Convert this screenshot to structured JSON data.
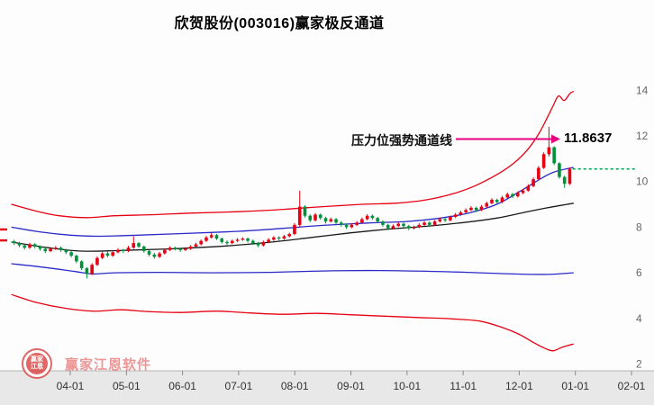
{
  "watermark": {
    "text": "赢家江恩软件",
    "logo_top": "赢家",
    "logo_bottom": "江恩"
  },
  "chart_data": {
    "type": "candlestick",
    "title": "欣贺股份(003016)赢家极反通道",
    "x_ticks": [
      "04-01",
      "05-01",
      "06-01",
      "07-01",
      "08-01",
      "09-01",
      "10-01",
      "11-01",
      "12-01",
      "01-01",
      "02-01"
    ],
    "y_ticks": [
      2,
      4,
      6,
      8,
      10,
      12,
      14
    ],
    "ylim": [
      2,
      14
    ],
    "grid": false,
    "legend": "none",
    "annotation": {
      "label": "压力位强势通道线",
      "value": "11.8637",
      "arrow_color": "#e6007e"
    },
    "price_extension_line": {
      "value": 10.55,
      "color": "#00a650",
      "style": "dotted"
    },
    "left_edge_markers": {
      "color": "#e60012",
      "values": [
        7.9,
        7.42
      ]
    },
    "channel_lines": [
      {
        "name": "upper-rail-red",
        "color": "#e60012",
        "points": [
          [
            -1.05,
            9.0
          ],
          [
            -0.6,
            8.7
          ],
          [
            -0.2,
            8.5
          ],
          [
            0.3,
            8.42
          ],
          [
            0.8,
            8.5
          ],
          [
            1.5,
            8.55
          ],
          [
            2.2,
            8.62
          ],
          [
            3.0,
            8.68
          ],
          [
            3.8,
            8.78
          ],
          [
            4.5,
            8.9
          ],
          [
            5.2,
            9.0
          ],
          [
            5.8,
            9.05
          ],
          [
            6.3,
            9.18
          ],
          [
            6.8,
            9.45
          ],
          [
            7.2,
            9.8
          ],
          [
            7.6,
            10.3
          ],
          [
            7.9,
            10.8
          ],
          [
            8.15,
            11.4
          ],
          [
            8.35,
            12.1
          ],
          [
            8.5,
            12.8
          ],
          [
            8.6,
            13.3
          ],
          [
            8.7,
            13.75
          ],
          [
            8.8,
            13.55
          ],
          [
            8.9,
            13.85
          ],
          [
            8.97,
            13.95
          ]
        ]
      },
      {
        "name": "upper-inner-blue",
        "color": "#2a2ac8",
        "points": [
          [
            -1.05,
            8.0
          ],
          [
            -0.5,
            7.78
          ],
          [
            0,
            7.65
          ],
          [
            0.5,
            7.6
          ],
          [
            1.2,
            7.65
          ],
          [
            2.0,
            7.72
          ],
          [
            3.0,
            7.82
          ],
          [
            3.8,
            7.95
          ],
          [
            4.5,
            8.08
          ],
          [
            5.3,
            8.18
          ],
          [
            6.0,
            8.25
          ],
          [
            6.6,
            8.4
          ],
          [
            7.1,
            8.62
          ],
          [
            7.6,
            9.0
          ],
          [
            8.0,
            9.55
          ],
          [
            8.3,
            10.0
          ],
          [
            8.6,
            10.4
          ],
          [
            8.97,
            10.62
          ]
        ]
      },
      {
        "name": "life-line-black",
        "color": "#1a1a1a",
        "points": [
          [
            -1.05,
            7.35
          ],
          [
            -0.4,
            7.1
          ],
          [
            0.2,
            6.95
          ],
          [
            0.9,
            6.98
          ],
          [
            1.8,
            7.05
          ],
          [
            2.8,
            7.18
          ],
          [
            3.6,
            7.35
          ],
          [
            4.3,
            7.55
          ],
          [
            5.0,
            7.75
          ],
          [
            5.7,
            7.92
          ],
          [
            6.4,
            8.05
          ],
          [
            7.0,
            8.2
          ],
          [
            7.6,
            8.4
          ],
          [
            8.1,
            8.65
          ],
          [
            8.5,
            8.85
          ],
          [
            8.97,
            9.05
          ]
        ]
      },
      {
        "name": "lower-inner-blue",
        "color": "#2a2ac8",
        "points": [
          [
            -1.05,
            6.4
          ],
          [
            -0.5,
            6.25
          ],
          [
            0.1,
            6.05
          ],
          [
            0.4,
            5.95
          ],
          [
            0.8,
            6.0
          ],
          [
            1.6,
            6.02
          ],
          [
            2.5,
            6.0
          ],
          [
            3.5,
            6.02
          ],
          [
            4.5,
            6.08
          ],
          [
            5.5,
            6.1
          ],
          [
            6.5,
            6.06
          ],
          [
            7.3,
            6.0
          ],
          [
            7.9,
            5.95
          ],
          [
            8.5,
            5.93
          ],
          [
            8.97,
            6.0
          ]
        ]
      },
      {
        "name": "lower-rail-red",
        "color": "#e60012",
        "points": [
          [
            -1.05,
            5.05
          ],
          [
            -0.6,
            4.7
          ],
          [
            -0.1,
            4.45
          ],
          [
            0.4,
            4.32
          ],
          [
            0.9,
            4.38
          ],
          [
            1.4,
            4.3
          ],
          [
            2.0,
            4.26
          ],
          [
            2.6,
            4.32
          ],
          [
            3.2,
            4.24
          ],
          [
            3.8,
            4.18
          ],
          [
            4.4,
            4.22
          ],
          [
            5.0,
            4.16
          ],
          [
            5.6,
            4.1
          ],
          [
            6.2,
            4.04
          ],
          [
            6.8,
            3.98
          ],
          [
            7.3,
            3.88
          ],
          [
            7.7,
            3.6
          ],
          [
            8.0,
            3.3
          ],
          [
            8.25,
            2.95
          ],
          [
            8.45,
            2.7
          ],
          [
            8.6,
            2.58
          ],
          [
            8.75,
            2.72
          ],
          [
            8.85,
            2.8
          ],
          [
            8.97,
            2.88
          ]
        ]
      }
    ],
    "candles": {
      "x_start": -1.0,
      "x_step": 0.09252,
      "up_color": "#e60012",
      "down_color": "#00913a",
      "ohlc": [
        [
          7.38,
          7.45,
          7.22,
          7.3
        ],
        [
          7.3,
          7.36,
          7.12,
          7.2
        ],
        [
          7.2,
          7.26,
          7.02,
          7.1
        ],
        [
          7.1,
          7.32,
          7.05,
          7.25
        ],
        [
          7.25,
          7.3,
          7.07,
          7.15
        ],
        [
          7.15,
          7.2,
          6.97,
          7.05
        ],
        [
          7.05,
          7.1,
          6.87,
          6.95
        ],
        [
          6.95,
          7.12,
          6.9,
          7.05
        ],
        [
          7.05,
          7.17,
          7.0,
          7.1
        ],
        [
          7.1,
          7.15,
          6.92,
          7.0
        ],
        [
          7.0,
          7.05,
          6.82,
          6.9
        ],
        [
          6.9,
          6.95,
          6.68,
          6.75
        ],
        [
          6.75,
          6.8,
          6.42,
          6.5
        ],
        [
          6.5,
          6.55,
          6.12,
          6.2
        ],
        [
          6.2,
          6.25,
          5.75,
          5.95
        ],
        [
          5.95,
          6.42,
          5.9,
          6.35
        ],
        [
          6.35,
          6.72,
          6.3,
          6.65
        ],
        [
          6.65,
          6.92,
          6.6,
          6.85
        ],
        [
          6.85,
          6.95,
          6.68,
          6.75
        ],
        [
          6.75,
          6.98,
          6.7,
          6.9
        ],
        [
          6.9,
          7.08,
          6.85,
          7.0
        ],
        [
          7.0,
          7.05,
          6.87,
          6.95
        ],
        [
          6.95,
          7.18,
          6.9,
          7.1
        ],
        [
          7.1,
          7.6,
          7.05,
          7.3
        ],
        [
          7.3,
          7.35,
          7.08,
          7.15
        ],
        [
          7.15,
          7.2,
          6.88,
          6.95
        ],
        [
          6.95,
          7.0,
          6.72,
          6.8
        ],
        [
          6.8,
          6.88,
          6.62,
          6.7
        ],
        [
          6.7,
          6.92,
          6.65,
          6.85
        ],
        [
          6.85,
          7.06,
          6.8,
          7.0
        ],
        [
          7.0,
          7.16,
          6.95,
          7.1
        ],
        [
          7.1,
          7.14,
          6.98,
          7.05
        ],
        [
          7.05,
          7.1,
          6.92,
          7.0
        ],
        [
          7.0,
          7.12,
          6.95,
          7.05
        ],
        [
          7.05,
          7.22,
          7.0,
          7.15
        ],
        [
          7.15,
          7.32,
          7.1,
          7.25
        ],
        [
          7.25,
          7.46,
          7.2,
          7.4
        ],
        [
          7.4,
          7.62,
          7.35,
          7.55
        ],
        [
          7.55,
          7.74,
          7.5,
          7.65
        ],
        [
          7.65,
          7.7,
          7.44,
          7.5
        ],
        [
          7.5,
          7.55,
          7.28,
          7.35
        ],
        [
          7.35,
          7.42,
          7.22,
          7.3
        ],
        [
          7.3,
          7.46,
          7.25,
          7.4
        ],
        [
          7.4,
          7.52,
          7.34,
          7.45
        ],
        [
          7.45,
          7.56,
          7.4,
          7.5
        ],
        [
          7.5,
          7.55,
          7.33,
          7.4
        ],
        [
          7.4,
          7.46,
          7.22,
          7.3
        ],
        [
          7.3,
          7.36,
          7.12,
          7.2
        ],
        [
          7.2,
          7.41,
          7.15,
          7.35
        ],
        [
          7.35,
          7.52,
          7.3,
          7.45
        ],
        [
          7.45,
          7.61,
          7.4,
          7.55
        ],
        [
          7.55,
          7.6,
          7.42,
          7.5
        ],
        [
          7.5,
          7.66,
          7.45,
          7.6
        ],
        [
          7.6,
          7.76,
          7.55,
          7.7
        ],
        [
          7.7,
          8.18,
          7.65,
          8.1
        ],
        [
          8.1,
          9.6,
          8.02,
          8.9
        ],
        [
          8.9,
          8.96,
          8.42,
          8.5
        ],
        [
          8.5,
          8.56,
          8.22,
          8.3
        ],
        [
          8.3,
          8.62,
          8.25,
          8.55
        ],
        [
          8.55,
          8.6,
          8.32,
          8.4
        ],
        [
          8.4,
          8.46,
          8.16,
          8.25
        ],
        [
          8.25,
          8.42,
          8.2,
          8.35
        ],
        [
          8.35,
          8.4,
          8.12,
          8.2
        ],
        [
          8.2,
          8.26,
          8.02,
          8.1
        ],
        [
          8.1,
          8.16,
          7.92,
          8.0
        ],
        [
          8.0,
          8.17,
          7.95,
          8.1
        ],
        [
          8.1,
          8.27,
          8.05,
          8.2
        ],
        [
          8.2,
          8.42,
          8.15,
          8.35
        ],
        [
          8.35,
          8.57,
          8.3,
          8.5
        ],
        [
          8.5,
          8.55,
          8.32,
          8.4
        ],
        [
          8.4,
          8.45,
          8.17,
          8.25
        ],
        [
          8.25,
          8.3,
          8.02,
          8.1
        ],
        [
          8.1,
          8.15,
          7.87,
          7.95
        ],
        [
          7.95,
          8.12,
          7.9,
          8.05
        ],
        [
          8.05,
          8.22,
          8.0,
          8.15
        ],
        [
          8.15,
          8.2,
          7.97,
          8.05
        ],
        [
          8.05,
          8.1,
          7.87,
          7.95
        ],
        [
          7.95,
          8.07,
          7.9,
          8.0
        ],
        [
          8.0,
          8.17,
          7.95,
          8.1
        ],
        [
          8.1,
          8.27,
          8.05,
          8.2
        ],
        [
          8.2,
          8.25,
          8.02,
          8.1
        ],
        [
          8.1,
          8.31,
          8.05,
          8.25
        ],
        [
          8.25,
          8.42,
          8.2,
          8.35
        ],
        [
          8.35,
          8.4,
          8.22,
          8.3
        ],
        [
          8.3,
          8.51,
          8.25,
          8.45
        ],
        [
          8.45,
          8.62,
          8.4,
          8.55
        ],
        [
          8.55,
          8.72,
          8.5,
          8.65
        ],
        [
          8.65,
          8.82,
          8.6,
          8.75
        ],
        [
          8.75,
          8.92,
          8.7,
          8.85
        ],
        [
          8.85,
          8.9,
          8.67,
          8.75
        ],
        [
          8.75,
          8.97,
          8.7,
          8.9
        ],
        [
          8.9,
          9.12,
          8.85,
          9.05
        ],
        [
          9.05,
          9.27,
          9.0,
          9.2
        ],
        [
          9.2,
          9.25,
          9.02,
          9.1
        ],
        [
          9.1,
          9.37,
          9.05,
          9.3
        ],
        [
          9.3,
          9.52,
          9.25,
          9.45
        ],
        [
          9.45,
          9.5,
          9.27,
          9.35
        ],
        [
          9.35,
          9.57,
          9.3,
          9.5
        ],
        [
          9.5,
          9.67,
          9.45,
          9.6
        ],
        [
          9.6,
          9.88,
          9.55,
          9.8
        ],
        [
          9.8,
          10.18,
          9.75,
          10.1
        ],
        [
          10.1,
          10.68,
          10.05,
          10.6
        ],
        [
          10.6,
          11.28,
          10.55,
          11.2
        ],
        [
          11.2,
          12.4,
          11.1,
          11.5
        ],
        [
          11.5,
          11.55,
          10.72,
          10.8
        ],
        [
          10.8,
          10.85,
          10.12,
          10.2
        ],
        [
          10.2,
          10.26,
          9.72,
          9.9
        ],
        [
          9.9,
          10.62,
          9.85,
          10.55
        ]
      ]
    }
  }
}
